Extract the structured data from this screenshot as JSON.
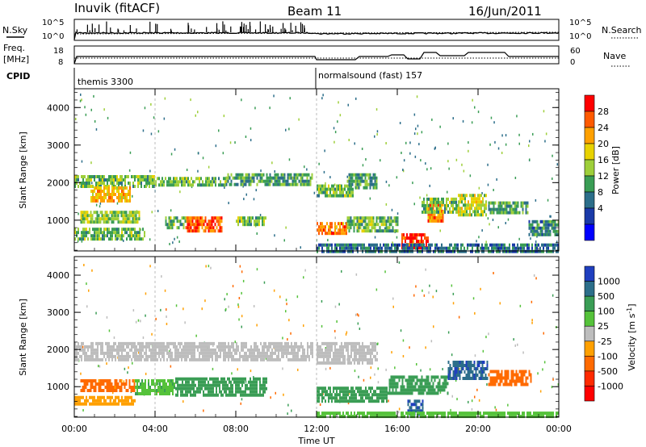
{
  "header": {
    "station": "Inuvik (fitACF)",
    "beam": "Beam 11",
    "date": "16/Jun/2011"
  },
  "noise_panel": {
    "left_label": "N.Sky",
    "right_label": "N.Search",
    "left_ticks": [
      "10^5",
      "10^0"
    ],
    "right_ticks": [
      "10^5",
      "10^0"
    ]
  },
  "freq_panel": {
    "left_label_line1": "Freq.",
    "left_label_line2": "[MHz]",
    "right_label": "Nave",
    "left_ticks": [
      "18",
      "8"
    ],
    "right_ticks": [
      "60",
      "0"
    ]
  },
  "cpid": {
    "label": "CPID",
    "modes": [
      {
        "name": "themis 3300",
        "start_hour": 0
      },
      {
        "name": "normalsound (fast) 157",
        "start_hour": 12
      }
    ]
  },
  "chart_data": [
    {
      "type": "heatmap",
      "name": "power",
      "ylabel": "Slant Range [km]",
      "xlabel": "",
      "x_range_hours": [
        0,
        24
      ],
      "ylim": [
        180,
        4500
      ],
      "yticks": [
        "1000",
        "2000",
        "3000",
        "4000"
      ],
      "colorbar": {
        "label": "Power [dB]",
        "ticks": [
          "28",
          "24",
          "20",
          "16",
          "12",
          "8",
          "4"
        ],
        "colors": [
          "#ff0000",
          "#ff5a00",
          "#ffa000",
          "#e8d200",
          "#9ecf3a",
          "#3a9d55",
          "#2c6e8a",
          "#1a3aa8",
          "#0000ff"
        ]
      },
      "bands": [
        {
          "t0": 0.0,
          "t1": 4.0,
          "r0": 1900,
          "r1": 2200,
          "level": 12
        },
        {
          "t0": 0.8,
          "t1": 2.8,
          "r0": 1550,
          "r1": 1900,
          "level": 20
        },
        {
          "t0": 4.0,
          "t1": 7.5,
          "r0": 1900,
          "r1": 2150,
          "level": 12
        },
        {
          "t0": 7.5,
          "t1": 11.8,
          "r0": 1950,
          "r1": 2250,
          "level": 10
        },
        {
          "t0": 0.3,
          "t1": 3.2,
          "r0": 950,
          "r1": 1250,
          "level": 14
        },
        {
          "t0": 0.0,
          "t1": 3.5,
          "r0": 500,
          "r1": 800,
          "level": 12
        },
        {
          "t0": 5.5,
          "t1": 7.3,
          "r0": 700,
          "r1": 1100,
          "level": 26
        },
        {
          "t0": 4.5,
          "t1": 5.5,
          "r0": 800,
          "r1": 1100,
          "level": 12
        },
        {
          "t0": 8.0,
          "t1": 9.5,
          "r0": 900,
          "r1": 1100,
          "level": 12
        },
        {
          "t0": 12.0,
          "t1": 13.8,
          "r0": 1650,
          "r1": 1950,
          "level": 12
        },
        {
          "t0": 13.5,
          "t1": 15.0,
          "r0": 1900,
          "r1": 2250,
          "level": 10
        },
        {
          "t0": 12.0,
          "t1": 13.5,
          "r0": 650,
          "r1": 950,
          "level": 24
        },
        {
          "t0": 13.5,
          "t1": 16.0,
          "r0": 700,
          "r1": 1100,
          "level": 12
        },
        {
          "t0": 16.2,
          "t1": 17.5,
          "r0": 250,
          "r1": 650,
          "level": 28
        },
        {
          "t0": 17.5,
          "t1": 18.3,
          "r0": 1000,
          "r1": 1450,
          "level": 24
        },
        {
          "t0": 17.2,
          "t1": 19.0,
          "r0": 1250,
          "r1": 1600,
          "level": 12
        },
        {
          "t0": 19.0,
          "t1": 20.4,
          "r0": 1150,
          "r1": 1700,
          "level": 16
        },
        {
          "t0": 20.5,
          "t1": 22.5,
          "r0": 1200,
          "r1": 1500,
          "level": 10
        },
        {
          "t0": 22.5,
          "t1": 24.0,
          "r0": 600,
          "r1": 1000,
          "level": 8
        },
        {
          "t0": 12.0,
          "t1": 24.0,
          "r0": 200,
          "r1": 380,
          "level": 6
        }
      ]
    },
    {
      "type": "heatmap",
      "name": "velocity",
      "ylabel": "Slant Range [km]",
      "xlabel": "Time UT",
      "x_range_hours": [
        0,
        24
      ],
      "xticks": [
        "00:00",
        "04:00",
        "08:00",
        "12:00",
        "16:00",
        "20:00",
        "00:00"
      ],
      "ylim": [
        180,
        4500
      ],
      "yticks": [
        "1000",
        "2000",
        "3000",
        "4000"
      ],
      "colorbar": {
        "label": "Velocity [m s^-1]",
        "ticks": [
          "1000",
          "500",
          "100",
          "25",
          "-25",
          "-100",
          "-500",
          "-1000"
        ],
        "colors": [
          "#1f3fbf",
          "#2c6e8a",
          "#3a9d55",
          "#55c23a",
          "#bdbdbd",
          "#ffa000",
          "#ff6a00",
          "#ff2a00",
          "#ff0000"
        ]
      },
      "bands": [
        {
          "t0": 0.0,
          "t1": 11.8,
          "r0": 1750,
          "r1": 2200,
          "vel": 0
        },
        {
          "t0": 12.0,
          "t1": 15.0,
          "r0": 1650,
          "r1": 2200,
          "vel": 0
        },
        {
          "t0": 0.3,
          "t1": 3.0,
          "r0": 900,
          "r1": 1200,
          "vel": -150
        },
        {
          "t0": 3.0,
          "t1": 5.0,
          "r0": 850,
          "r1": 1200,
          "vel": 80
        },
        {
          "t0": 5.0,
          "t1": 9.5,
          "r0": 800,
          "r1": 1250,
          "vel": 300
        },
        {
          "t0": 0.0,
          "t1": 3.0,
          "r0": 500,
          "r1": 750,
          "vel": -60
        },
        {
          "t0": 12.0,
          "t1": 15.5,
          "r0": 650,
          "r1": 1000,
          "vel": 300
        },
        {
          "t0": 15.5,
          "t1": 18.5,
          "r0": 800,
          "r1": 1300,
          "vel": 350
        },
        {
          "t0": 18.5,
          "t1": 20.5,
          "r0": 1200,
          "r1": 1700,
          "vel": 900
        },
        {
          "t0": 20.5,
          "t1": 22.6,
          "r0": 1050,
          "r1": 1450,
          "vel": -300
        },
        {
          "t0": 16.5,
          "t1": 17.3,
          "r0": 300,
          "r1": 650,
          "vel": 900
        },
        {
          "t0": 12.0,
          "t1": 24.0,
          "r0": 220,
          "r1": 330,
          "vel": 60
        }
      ]
    }
  ]
}
